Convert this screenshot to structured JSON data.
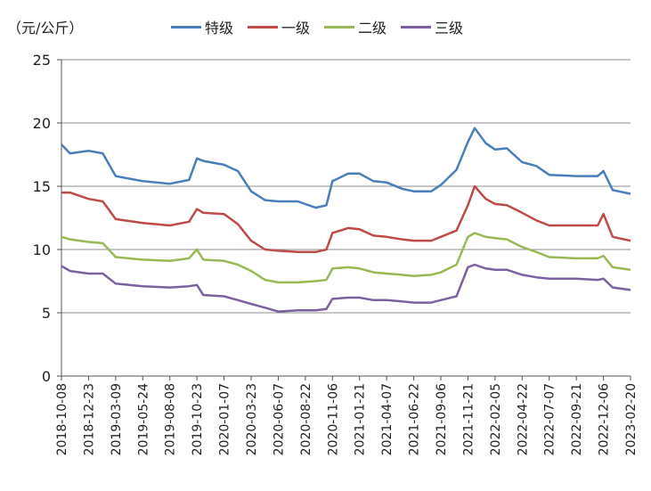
{
  "chart_data": {
    "type": "line",
    "ylabel": "（元/公斤）",
    "ylim": [
      0,
      25
    ],
    "yticks": [
      0,
      5,
      10,
      15,
      20,
      25
    ],
    "grid": true,
    "legend_position": "top",
    "x_tick_labels": [
      "2018-10-08",
      "2018-12-23",
      "2019-03-09",
      "2019-05-24",
      "2019-08-08",
      "2019-10-23",
      "2020-01-07",
      "2020-03-23",
      "2020-06-07",
      "2020-08-22",
      "2020-11-06",
      "2021-01-21",
      "2021-04-07",
      "2021-06-22",
      "2021-09-06",
      "2021-11-21",
      "2022-02-05",
      "2022-04-22",
      "2022-07-07",
      "2022-09-21",
      "2022-12-06",
      "2023-02-20"
    ],
    "x": [
      "2018-10-08",
      "2018-11-01",
      "2018-12-23",
      "2019-02-01",
      "2019-03-09",
      "2019-05-24",
      "2019-08-08",
      "2019-10-01",
      "2019-10-23",
      "2019-11-10",
      "2020-01-07",
      "2020-02-15",
      "2020-03-23",
      "2020-05-01",
      "2020-06-07",
      "2020-08-01",
      "2020-09-20",
      "2020-10-20",
      "2020-11-06",
      "2020-12-20",
      "2021-01-21",
      "2021-03-01",
      "2021-04-07",
      "2021-05-20",
      "2021-06-22",
      "2021-08-10",
      "2021-09-06",
      "2021-10-20",
      "2021-11-21",
      "2021-12-10",
      "2022-01-10",
      "2022-02-05",
      "2022-03-10",
      "2022-04-22",
      "2022-06-01",
      "2022-07-07",
      "2022-09-21",
      "2022-11-20",
      "2022-12-06",
      "2023-01-01",
      "2023-02-20"
    ],
    "series": [
      {
        "name": "特级",
        "color": "#4a7ebb",
        "values": [
          18.3,
          17.6,
          17.8,
          17.6,
          15.8,
          15.4,
          15.2,
          15.5,
          17.2,
          17.0,
          16.7,
          16.2,
          14.6,
          13.9,
          13.8,
          13.8,
          13.3,
          13.5,
          15.4,
          16.0,
          16.0,
          15.4,
          15.3,
          14.8,
          14.6,
          14.6,
          15.1,
          16.3,
          18.5,
          19.6,
          18.4,
          17.9,
          18.0,
          16.9,
          16.6,
          15.9,
          15.8,
          15.8,
          16.2,
          14.7,
          14.4
        ]
      },
      {
        "name": "一级",
        "color": "#be4b48",
        "values": [
          14.5,
          14.5,
          14.0,
          13.8,
          12.4,
          12.1,
          11.9,
          12.2,
          13.2,
          12.9,
          12.8,
          12.0,
          10.7,
          10.0,
          9.9,
          9.8,
          9.8,
          10.0,
          11.3,
          11.7,
          11.6,
          11.1,
          11.0,
          10.8,
          10.7,
          10.7,
          11.0,
          11.5,
          13.5,
          15.0,
          14.0,
          13.6,
          13.5,
          12.9,
          12.3,
          11.9,
          11.9,
          11.9,
          12.8,
          11.0,
          10.7
        ]
      },
      {
        "name": "二级",
        "color": "#98b954",
        "values": [
          11.0,
          10.8,
          10.6,
          10.5,
          9.4,
          9.2,
          9.1,
          9.3,
          10.0,
          9.2,
          9.1,
          8.8,
          8.3,
          7.6,
          7.4,
          7.4,
          7.5,
          7.6,
          8.5,
          8.6,
          8.5,
          8.2,
          8.1,
          8.0,
          7.9,
          8.0,
          8.2,
          8.8,
          11.0,
          11.3,
          11.0,
          10.9,
          10.8,
          10.2,
          9.8,
          9.4,
          9.3,
          9.3,
          9.5,
          8.6,
          8.4
        ]
      },
      {
        "name": "三级",
        "color": "#7d60a0",
        "values": [
          8.7,
          8.3,
          8.1,
          8.1,
          7.3,
          7.1,
          7.0,
          7.1,
          7.2,
          6.4,
          6.3,
          6.0,
          5.7,
          5.4,
          5.1,
          5.2,
          5.2,
          5.3,
          6.1,
          6.2,
          6.2,
          6.0,
          6.0,
          5.9,
          5.8,
          5.8,
          6.0,
          6.3,
          8.6,
          8.8,
          8.5,
          8.4,
          8.4,
          8.0,
          7.8,
          7.7,
          7.7,
          7.6,
          7.7,
          7.0,
          6.8
        ]
      }
    ]
  }
}
